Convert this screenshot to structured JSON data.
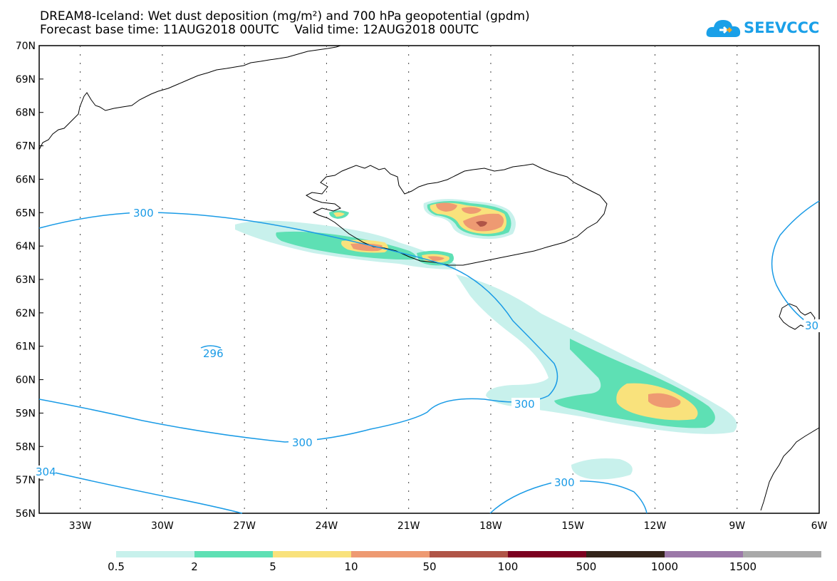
{
  "title": {
    "line1": "DREAM8-Iceland: Wet dust deposition (mg/m²) and 700 hPa geopotential (gpdm)",
    "line2": "Forecast base time: 11AUG2018 00UTC    Valid time: 12AUG2018 00UTC"
  },
  "logo": {
    "text": "SEEVCCC",
    "icon": "cloud-icon"
  },
  "axes": {
    "lat_labels": [
      "70N",
      "69N",
      "68N",
      "67N",
      "66N",
      "65N",
      "64N",
      "63N",
      "62N",
      "61N",
      "60N",
      "59N",
      "58N",
      "57N",
      "56N"
    ],
    "lon_labels": [
      "33W",
      "30W",
      "27W",
      "24W",
      "21W",
      "18W",
      "15W",
      "12W",
      "9W",
      "6W"
    ],
    "lat_range": [
      56,
      70
    ],
    "lon_range": [
      -34.5,
      -6
    ]
  },
  "contours": {
    "color": "#1a9be6",
    "labels": [
      "300",
      "300",
      "300",
      "300",
      "296",
      "304",
      "30"
    ]
  },
  "colorbar": {
    "colors": [
      "#c8f1ec",
      "#5ee0b4",
      "#f9e27c",
      "#ee9a72",
      "#b05547",
      "#7c0020",
      "#33241a",
      "#9b78a8",
      "#a9a9a9"
    ],
    "labels": [
      "0.5",
      "2",
      "5",
      "10",
      "50",
      "100",
      "500",
      "1000",
      "1500"
    ]
  }
}
